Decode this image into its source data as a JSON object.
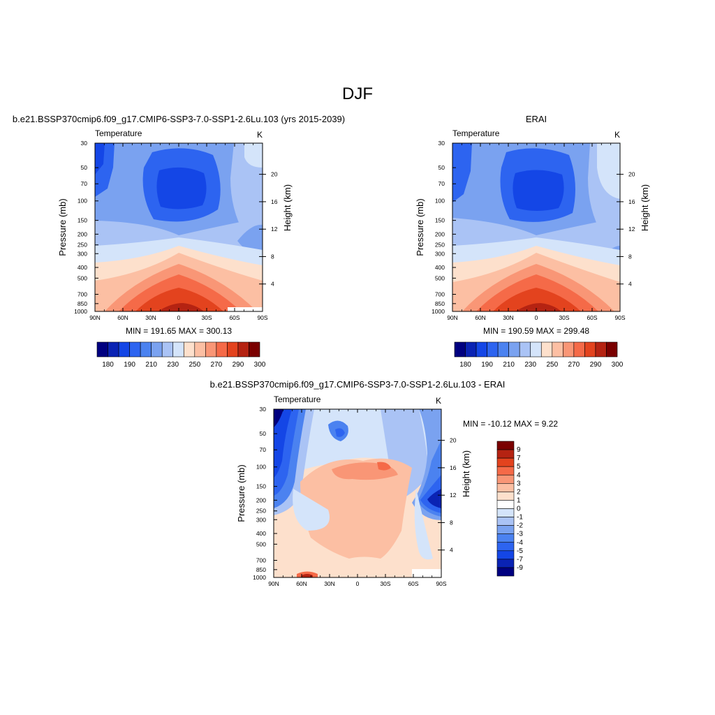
{
  "page": {
    "title": "DJF"
  },
  "chart_data": [
    {
      "type": "heatmap",
      "id": "model",
      "title": "b.e21.BSSP370cmip6.f09_g17.CMIP6-SSP3-7.0-SSP1-2.6Lu.103 (yrs 2015-2039)",
      "left_label": "Temperature",
      "right_label": "K",
      "xlabel": "",
      "ylabel": "Pressure (mb)",
      "ylabel_right": "Height (km)",
      "xticks": [
        "90N",
        "60N",
        "30N",
        "0",
        "30S",
        "60S",
        "90S"
      ],
      "yticks": [
        30,
        50,
        70,
        100,
        150,
        200,
        250,
        300,
        400,
        500,
        700,
        850,
        1000
      ],
      "yticks_right": [
        20,
        16,
        12,
        8,
        4
      ],
      "ylim": [
        1000,
        30
      ],
      "y_scale": "log",
      "stats": "MIN = 191.65  MAX = 300.13",
      "min": 191.65,
      "max": 300.13,
      "colorbar": {
        "orientation": "horizontal",
        "labels": [
          "180",
          "190",
          "210",
          "230",
          "250",
          "270",
          "290",
          "300"
        ],
        "colors": [
          "#000080",
          "#0a23b4",
          "#1446e6",
          "#2d64f0",
          "#4b82f0",
          "#7aa2f0",
          "#aac3f5",
          "#d4e4fa",
          "#fde0cc",
          "#fcbfa3",
          "#f99676",
          "#f56a48",
          "#e3431e",
          "#b52312",
          "#7a0000"
        ]
      }
    },
    {
      "type": "heatmap",
      "id": "erai",
      "title": "ERAI",
      "left_label": "Temperature",
      "right_label": "K",
      "xlabel": "",
      "ylabel": "Pressure (mb)",
      "ylabel_right": "Height (km)",
      "xticks": [
        "90N",
        "60N",
        "30N",
        "0",
        "30S",
        "60S",
        "90S"
      ],
      "yticks": [
        30,
        50,
        70,
        100,
        150,
        200,
        250,
        300,
        400,
        500,
        700,
        850,
        1000
      ],
      "yticks_right": [
        20,
        16,
        12,
        8,
        4
      ],
      "ylim": [
        1000,
        30
      ],
      "y_scale": "log",
      "stats": "MIN = 190.59  MAX = 299.48",
      "min": 190.59,
      "max": 299.48,
      "colorbar": {
        "orientation": "horizontal",
        "labels": [
          "180",
          "190",
          "210",
          "230",
          "250",
          "270",
          "290",
          "300"
        ],
        "colors": [
          "#000080",
          "#0a23b4",
          "#1446e6",
          "#2d64f0",
          "#4b82f0",
          "#7aa2f0",
          "#aac3f5",
          "#d4e4fa",
          "#fde0cc",
          "#fcbfa3",
          "#f99676",
          "#f56a48",
          "#e3431e",
          "#b52312",
          "#7a0000"
        ]
      }
    },
    {
      "type": "heatmap",
      "id": "diff",
      "title": "b.e21.BSSP370cmip6.f09_g17.CMIP6-SSP3-7.0-SSP1-2.6Lu.103 - ERAI",
      "left_label": "Temperature",
      "right_label": "K",
      "xlabel": "",
      "ylabel": "Pressure (mb)",
      "ylabel_right": "Height (km)",
      "xticks": [
        "90N",
        "60N",
        "30N",
        "0",
        "30S",
        "60S",
        "90S"
      ],
      "yticks": [
        30,
        50,
        70,
        100,
        150,
        200,
        250,
        300,
        400,
        500,
        700,
        850,
        1000
      ],
      "yticks_right": [
        20,
        16,
        12,
        8,
        4
      ],
      "ylim": [
        1000,
        30
      ],
      "y_scale": "log",
      "stats": "MIN = -10.12  MAX =   9.22",
      "min": -10.12,
      "max": 9.22,
      "colorbar": {
        "orientation": "vertical",
        "labels": [
          "9",
          "7",
          "5",
          "4",
          "3",
          "2",
          "1",
          "0",
          "-1",
          "-2",
          "-3",
          "-4",
          "-5",
          "-7",
          "-9"
        ],
        "colors": [
          "#7a0000",
          "#b52312",
          "#e3431e",
          "#f56a48",
          "#f99676",
          "#fcbfa3",
          "#fde0cc",
          "#ffffff",
          "#d4e4fa",
          "#aac3f5",
          "#7aa2f0",
          "#4b82f0",
          "#2d64f0",
          "#1446e6",
          "#0a23b4",
          "#000080"
        ]
      }
    }
  ]
}
